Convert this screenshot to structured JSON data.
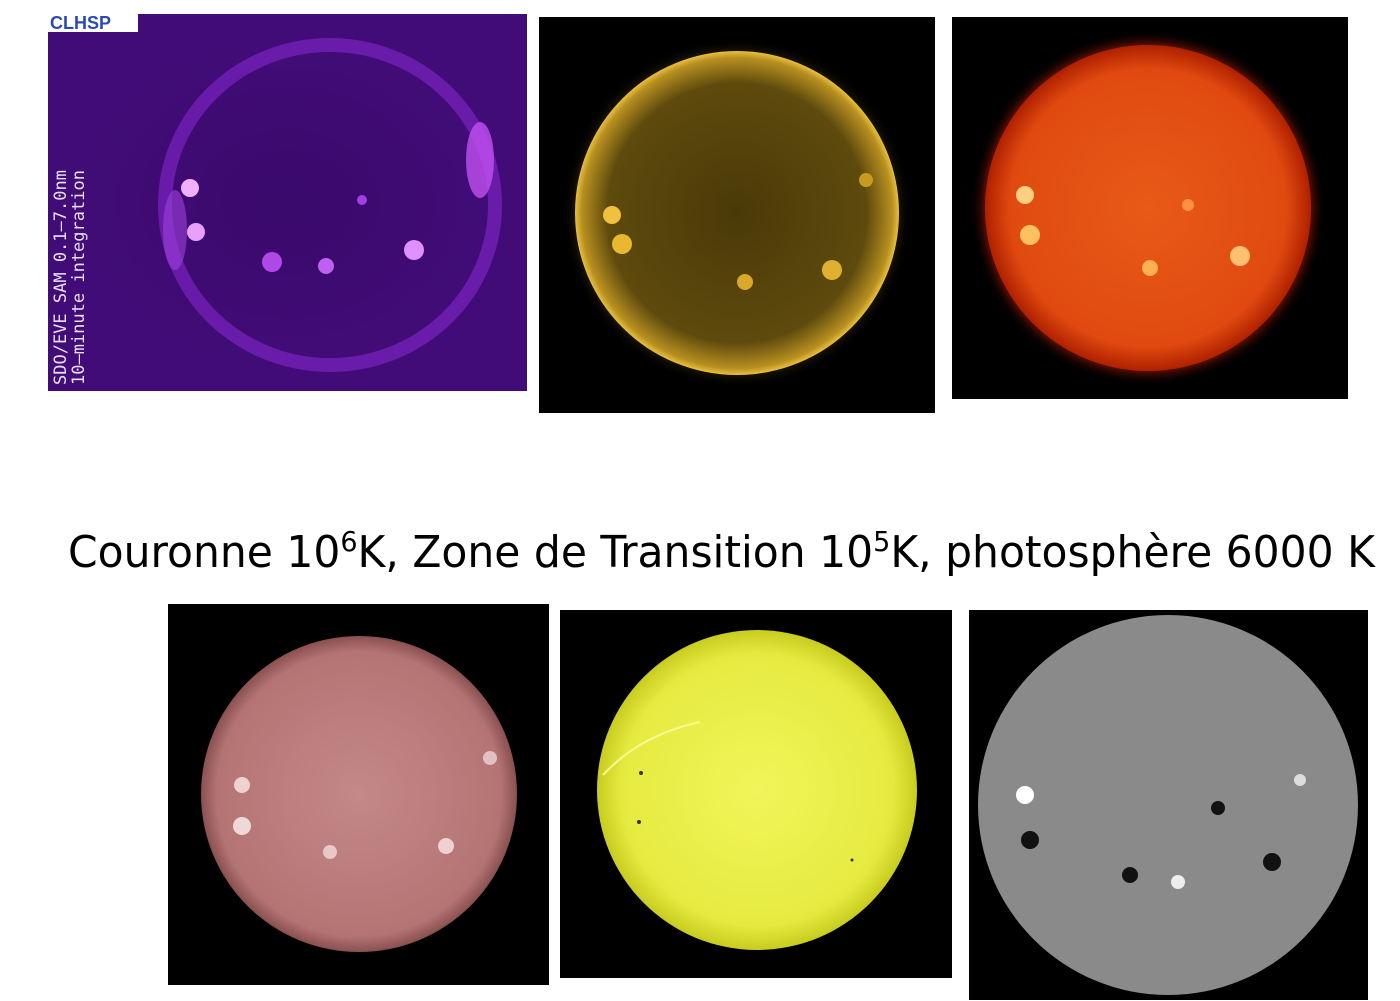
{
  "purple_panel": {
    "logo": "CLHSP",
    "label_lines": [
      "SDO/EVE SAM 0.1–7.0nm",
      "10–minute integration"
    ]
  },
  "caption": {
    "parts": [
      "Couronne 10",
      "6",
      "K, Zone de Transition 10",
      "5",
      "K, photosphère 6000 K"
    ]
  }
}
